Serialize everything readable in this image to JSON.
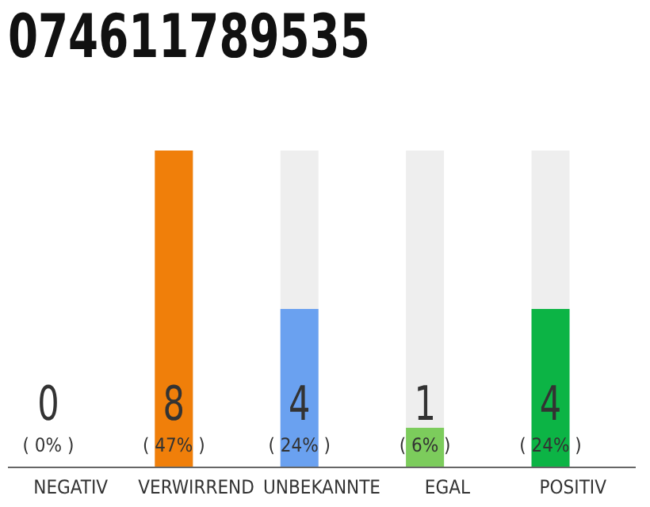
{
  "chart_data": {
    "type": "bar",
    "title": "074611789535",
    "categories": [
      "NEGATIV",
      "VERWIRREND",
      "UNBEKANNTE",
      "EGAL",
      "POSITIV"
    ],
    "values": [
      0,
      8,
      4,
      1,
      4
    ],
    "colors": [
      null,
      "#f07f0a",
      "#6aa1f0",
      "#7ccc5c",
      "#0cb445"
    ],
    "value_labels": [
      "0\n( 0% )",
      "8\n( 47% )",
      "4\n( 24% )",
      "1\n( 6% )",
      "4\n( 24% )"
    ],
    "grid": false,
    "legend": false
  }
}
